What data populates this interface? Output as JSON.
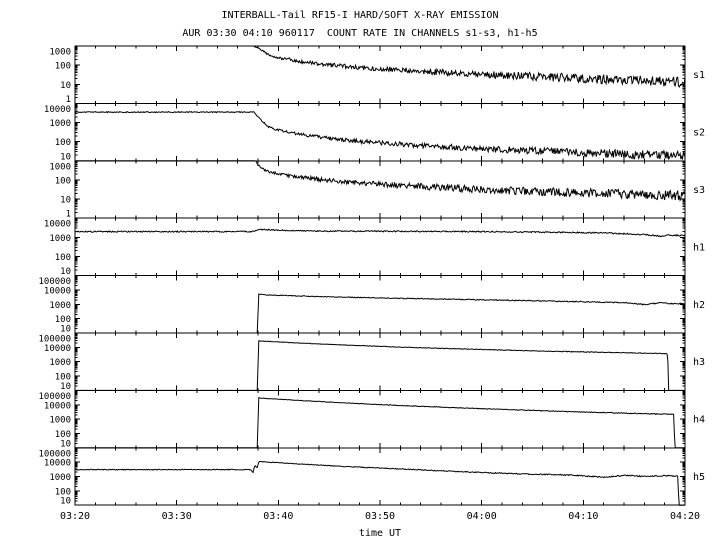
{
  "title": "INTERBALL-Tail RF15-I HARD/SOFT X-RAY EMISSION",
  "subtitle": "AUR 03:30 04:10 960117  COUNT RATE IN CHANNELS s1-s3, h1-h5",
  "chart_data": {
    "type": "line",
    "title": "INTERBALL-Tail RF15-I HARD/SOFT X-RAY EMISSION",
    "subtitle": "AUR 03:30 04:10 960117  COUNT RATE IN CHANNELS s1-s3, h1-h5",
    "xlabel": "time UT",
    "x_unit": "minutes after 03:20 UT",
    "xlim_minutes_from_0320": [
      0,
      60
    ],
    "x_minor_tick_minutes": 2,
    "x_ticks": [
      {
        "t": 0,
        "label": "03:20"
      },
      {
        "t": 10,
        "label": "03:30"
      },
      {
        "t": 20,
        "label": "03:40"
      },
      {
        "t": 30,
        "label": "03:50"
      },
      {
        "t": 40,
        "label": "04:00"
      },
      {
        "t": 50,
        "label": "04:10"
      },
      {
        "t": 60,
        "label": "04:20"
      }
    ],
    "line_color": "#000000",
    "background_color": "#ffffff",
    "grid": false,
    "yscale": "log",
    "panels": [
      {
        "label": "s1",
        "ylim": [
          1,
          1000
        ],
        "yticks": [
          1000,
          100,
          10,
          1
        ],
        "points_t_counts": [
          [
            0,
            1000
          ],
          [
            17.6,
            1000
          ],
          [
            18.0,
            800
          ],
          [
            19,
            350
          ],
          [
            20,
            250
          ],
          [
            22,
            160
          ],
          [
            25,
            100
          ],
          [
            28,
            75
          ],
          [
            32,
            55
          ],
          [
            36,
            42
          ],
          [
            40,
            33
          ],
          [
            45,
            26
          ],
          [
            50,
            20
          ],
          [
            55,
            16
          ],
          [
            60,
            13
          ]
        ]
      },
      {
        "label": "s2",
        "ylim": [
          10,
          10000
        ],
        "yticks": [
          10000,
          1000,
          100,
          10
        ],
        "points_t_counts": [
          [
            0,
            3500
          ],
          [
            17.6,
            3500
          ],
          [
            18.2,
            1500
          ],
          [
            19,
            600
          ],
          [
            20,
            400
          ],
          [
            22,
            250
          ],
          [
            25,
            150
          ],
          [
            28,
            105
          ],
          [
            32,
            75
          ],
          [
            36,
            55
          ],
          [
            40,
            43
          ],
          [
            45,
            33
          ],
          [
            50,
            26
          ],
          [
            55,
            21
          ],
          [
            60,
            18
          ]
        ]
      },
      {
        "label": "s3",
        "ylim": [
          1,
          1000
        ],
        "yticks": [
          1000,
          100,
          10,
          1
        ],
        "points_t_counts": [
          [
            0,
            1000
          ],
          [
            17.7,
            1000
          ],
          [
            18.3,
            400
          ],
          [
            19,
            280
          ],
          [
            20,
            200
          ],
          [
            22,
            140
          ],
          [
            25,
            95
          ],
          [
            28,
            70
          ],
          [
            32,
            52
          ],
          [
            36,
            40
          ],
          [
            40,
            32
          ],
          [
            45,
            25
          ],
          [
            50,
            21
          ],
          [
            55,
            18
          ],
          [
            60,
            15
          ]
        ]
      },
      {
        "label": "h1",
        "ylim": [
          10,
          10000
        ],
        "yticks": [
          10000,
          1000,
          100,
          10
        ],
        "points_t_counts": [
          [
            0,
            2000
          ],
          [
            17.5,
            2000
          ],
          [
            18,
            2600
          ],
          [
            19,
            2500
          ],
          [
            21,
            2250
          ],
          [
            25,
            2100
          ],
          [
            35,
            2050
          ],
          [
            45,
            1900
          ],
          [
            52,
            1700
          ],
          [
            56,
            1400
          ],
          [
            57.5,
            1150
          ],
          [
            58.5,
            1300
          ],
          [
            60,
            1250
          ]
        ]
      },
      {
        "label": "h2",
        "ylim": [
          10,
          100000
        ],
        "yticks": [
          100000,
          10000,
          1000,
          100,
          10
        ],
        "points_t_counts": [
          [
            0,
            10
          ],
          [
            17.95,
            10
          ],
          [
            18.05,
            5000
          ],
          [
            19,
            4500
          ],
          [
            22,
            3800
          ],
          [
            26,
            3200
          ],
          [
            31,
            2700
          ],
          [
            36,
            2300
          ],
          [
            41,
            2000
          ],
          [
            46,
            1700
          ],
          [
            50,
            1500
          ],
          [
            54,
            1300
          ],
          [
            56,
            950
          ],
          [
            57.5,
            1250
          ],
          [
            58.5,
            1150
          ],
          [
            60,
            1100
          ]
        ]
      },
      {
        "label": "h3",
        "ylim": [
          10,
          100000
        ],
        "yticks": [
          100000,
          10000,
          1000,
          100,
          10
        ],
        "points_t_counts": [
          [
            0,
            10
          ],
          [
            17.95,
            10
          ],
          [
            18.05,
            28000
          ],
          [
            19,
            26000
          ],
          [
            22,
            20000
          ],
          [
            26,
            15000
          ],
          [
            31,
            11000
          ],
          [
            36,
            8500
          ],
          [
            41,
            6800
          ],
          [
            46,
            5500
          ],
          [
            50,
            4800
          ],
          [
            54,
            4200
          ],
          [
            57,
            3800
          ],
          [
            58.3,
            3500
          ],
          [
            58.4,
            10
          ],
          [
            60,
            10
          ]
        ]
      },
      {
        "label": "h4",
        "ylim": [
          10,
          100000
        ],
        "yticks": [
          100000,
          10000,
          1000,
          100,
          10
        ],
        "points_t_counts": [
          [
            0,
            10
          ],
          [
            17.95,
            10
          ],
          [
            18.05,
            30000
          ],
          [
            19,
            27000
          ],
          [
            22,
            20000
          ],
          [
            26,
            14000
          ],
          [
            31,
            9500
          ],
          [
            36,
            6800
          ],
          [
            41,
            5000
          ],
          [
            46,
            3800
          ],
          [
            50,
            3100
          ],
          [
            54,
            2600
          ],
          [
            57,
            2300
          ],
          [
            58.9,
            2100
          ],
          [
            59.0,
            10
          ],
          [
            60,
            10
          ]
        ]
      },
      {
        "label": "h5",
        "ylim": [
          10,
          100000
        ],
        "yticks": [
          100000,
          10000,
          1000,
          100,
          10
        ],
        "points_t_counts": [
          [
            0,
            3000
          ],
          [
            17.3,
            3000
          ],
          [
            17.5,
            1800
          ],
          [
            17.7,
            6000
          ],
          [
            17.9,
            4000
          ],
          [
            18.1,
            11000
          ],
          [
            19,
            10000
          ],
          [
            22,
            7500
          ],
          [
            26,
            5200
          ],
          [
            31,
            3600
          ],
          [
            36,
            2500
          ],
          [
            40,
            1900
          ],
          [
            44,
            1500
          ],
          [
            48,
            1300
          ],
          [
            50,
            1100
          ],
          [
            52,
            900
          ],
          [
            54,
            1200
          ],
          [
            56,
            1000
          ],
          [
            58,
            1150
          ],
          [
            59.3,
            1050
          ],
          [
            59.4,
            10
          ],
          [
            60,
            10
          ]
        ]
      }
    ]
  }
}
